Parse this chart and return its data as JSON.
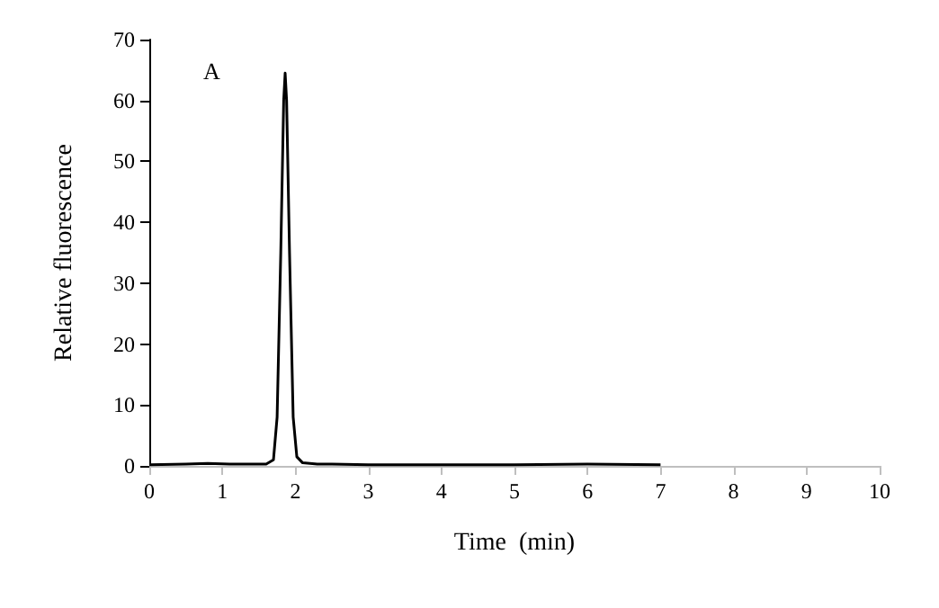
{
  "chart_data": {
    "type": "line",
    "xlabel": "Time  (min)",
    "ylabel": "Relative fluorescence",
    "annotations": [
      "A"
    ],
    "x": [
      0,
      0.5,
      0.8,
      1.1,
      1.3,
      1.6,
      1.7,
      1.75,
      1.8,
      1.84,
      1.86,
      1.88,
      1.92,
      1.97,
      2.02,
      2.1,
      2.3,
      2.5,
      3,
      4,
      5,
      6,
      7
    ],
    "series": [
      {
        "color": "#000000",
        "values": [
          0.2,
          0.3,
          0.4,
          0.3,
          0.3,
          0.3,
          1,
          8,
          35,
          60,
          64.5,
          60,
          35,
          8,
          1.5,
          0.5,
          0.3,
          0.3,
          0.2,
          0.2,
          0.2,
          0.3,
          0.2
        ]
      }
    ],
    "xlim": [
      0,
      10
    ],
    "xticks": [
      0,
      1,
      2,
      3,
      4,
      5,
      6,
      7,
      8,
      9,
      10
    ],
    "ylim": [
      0,
      70
    ],
    "yticks": [
      0,
      10,
      20,
      30,
      40,
      50,
      60,
      70
    ],
    "grid": false,
    "marker": "none",
    "line_style": "solid"
  }
}
